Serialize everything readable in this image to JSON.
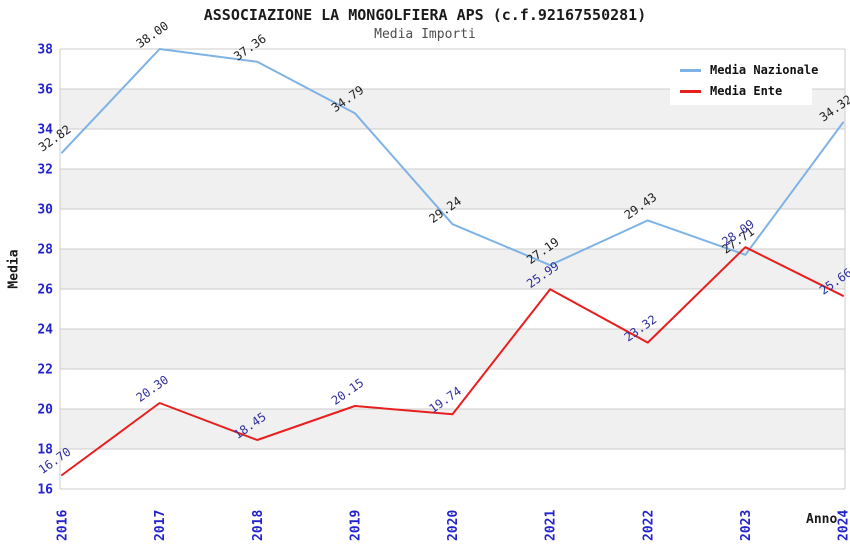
{
  "header": {
    "title": "ASSOCIAZIONE LA MONGOLFIERA APS (c.f.92167550281)",
    "subtitle": "Media Importi"
  },
  "colors": {
    "tick_label": "#2323cc",
    "grid_line": "#cccccc",
    "band_fill": "#f0f0f0",
    "plot_background": "#ffffff",
    "title_text": "#1a1a1a",
    "subtitle_text": "#4d4d4d"
  },
  "chart_data": {
    "type": "line",
    "title": "ASSOCIAZIONE LA MONGOLFIERA APS (c.f.92167550281)",
    "subtitle": "Media Importi",
    "xlabel": "Anno",
    "ylabel": "Media",
    "x": [
      "2016",
      "2017",
      "2018",
      "2019",
      "2020",
      "2021",
      "2022",
      "2023",
      "2024"
    ],
    "series": [
      {
        "name": "Media Nazionale",
        "color": "#7fb2e5",
        "label_color": "#1f1f1f",
        "values": [
          32.82,
          38.0,
          37.36,
          34.79,
          29.24,
          27.19,
          29.43,
          27.71,
          34.32
        ]
      },
      {
        "name": "Media Ente",
        "color": "#e81f1f",
        "label_color": "#30309c",
        "values": [
          16.7,
          20.3,
          18.45,
          20.15,
          19.74,
          25.99,
          23.32,
          28.09,
          25.66
        ]
      }
    ],
    "ylim": [
      16,
      38
    ],
    "ytick_step": 2,
    "yticks": [
      16,
      18,
      20,
      22,
      24,
      26,
      28,
      30,
      32,
      34,
      36,
      38
    ],
    "grid": true,
    "band_fill_style": "alternating-horizontal",
    "legend_position": "top-right",
    "point_labels": "value-2-decimals-rotated"
  }
}
